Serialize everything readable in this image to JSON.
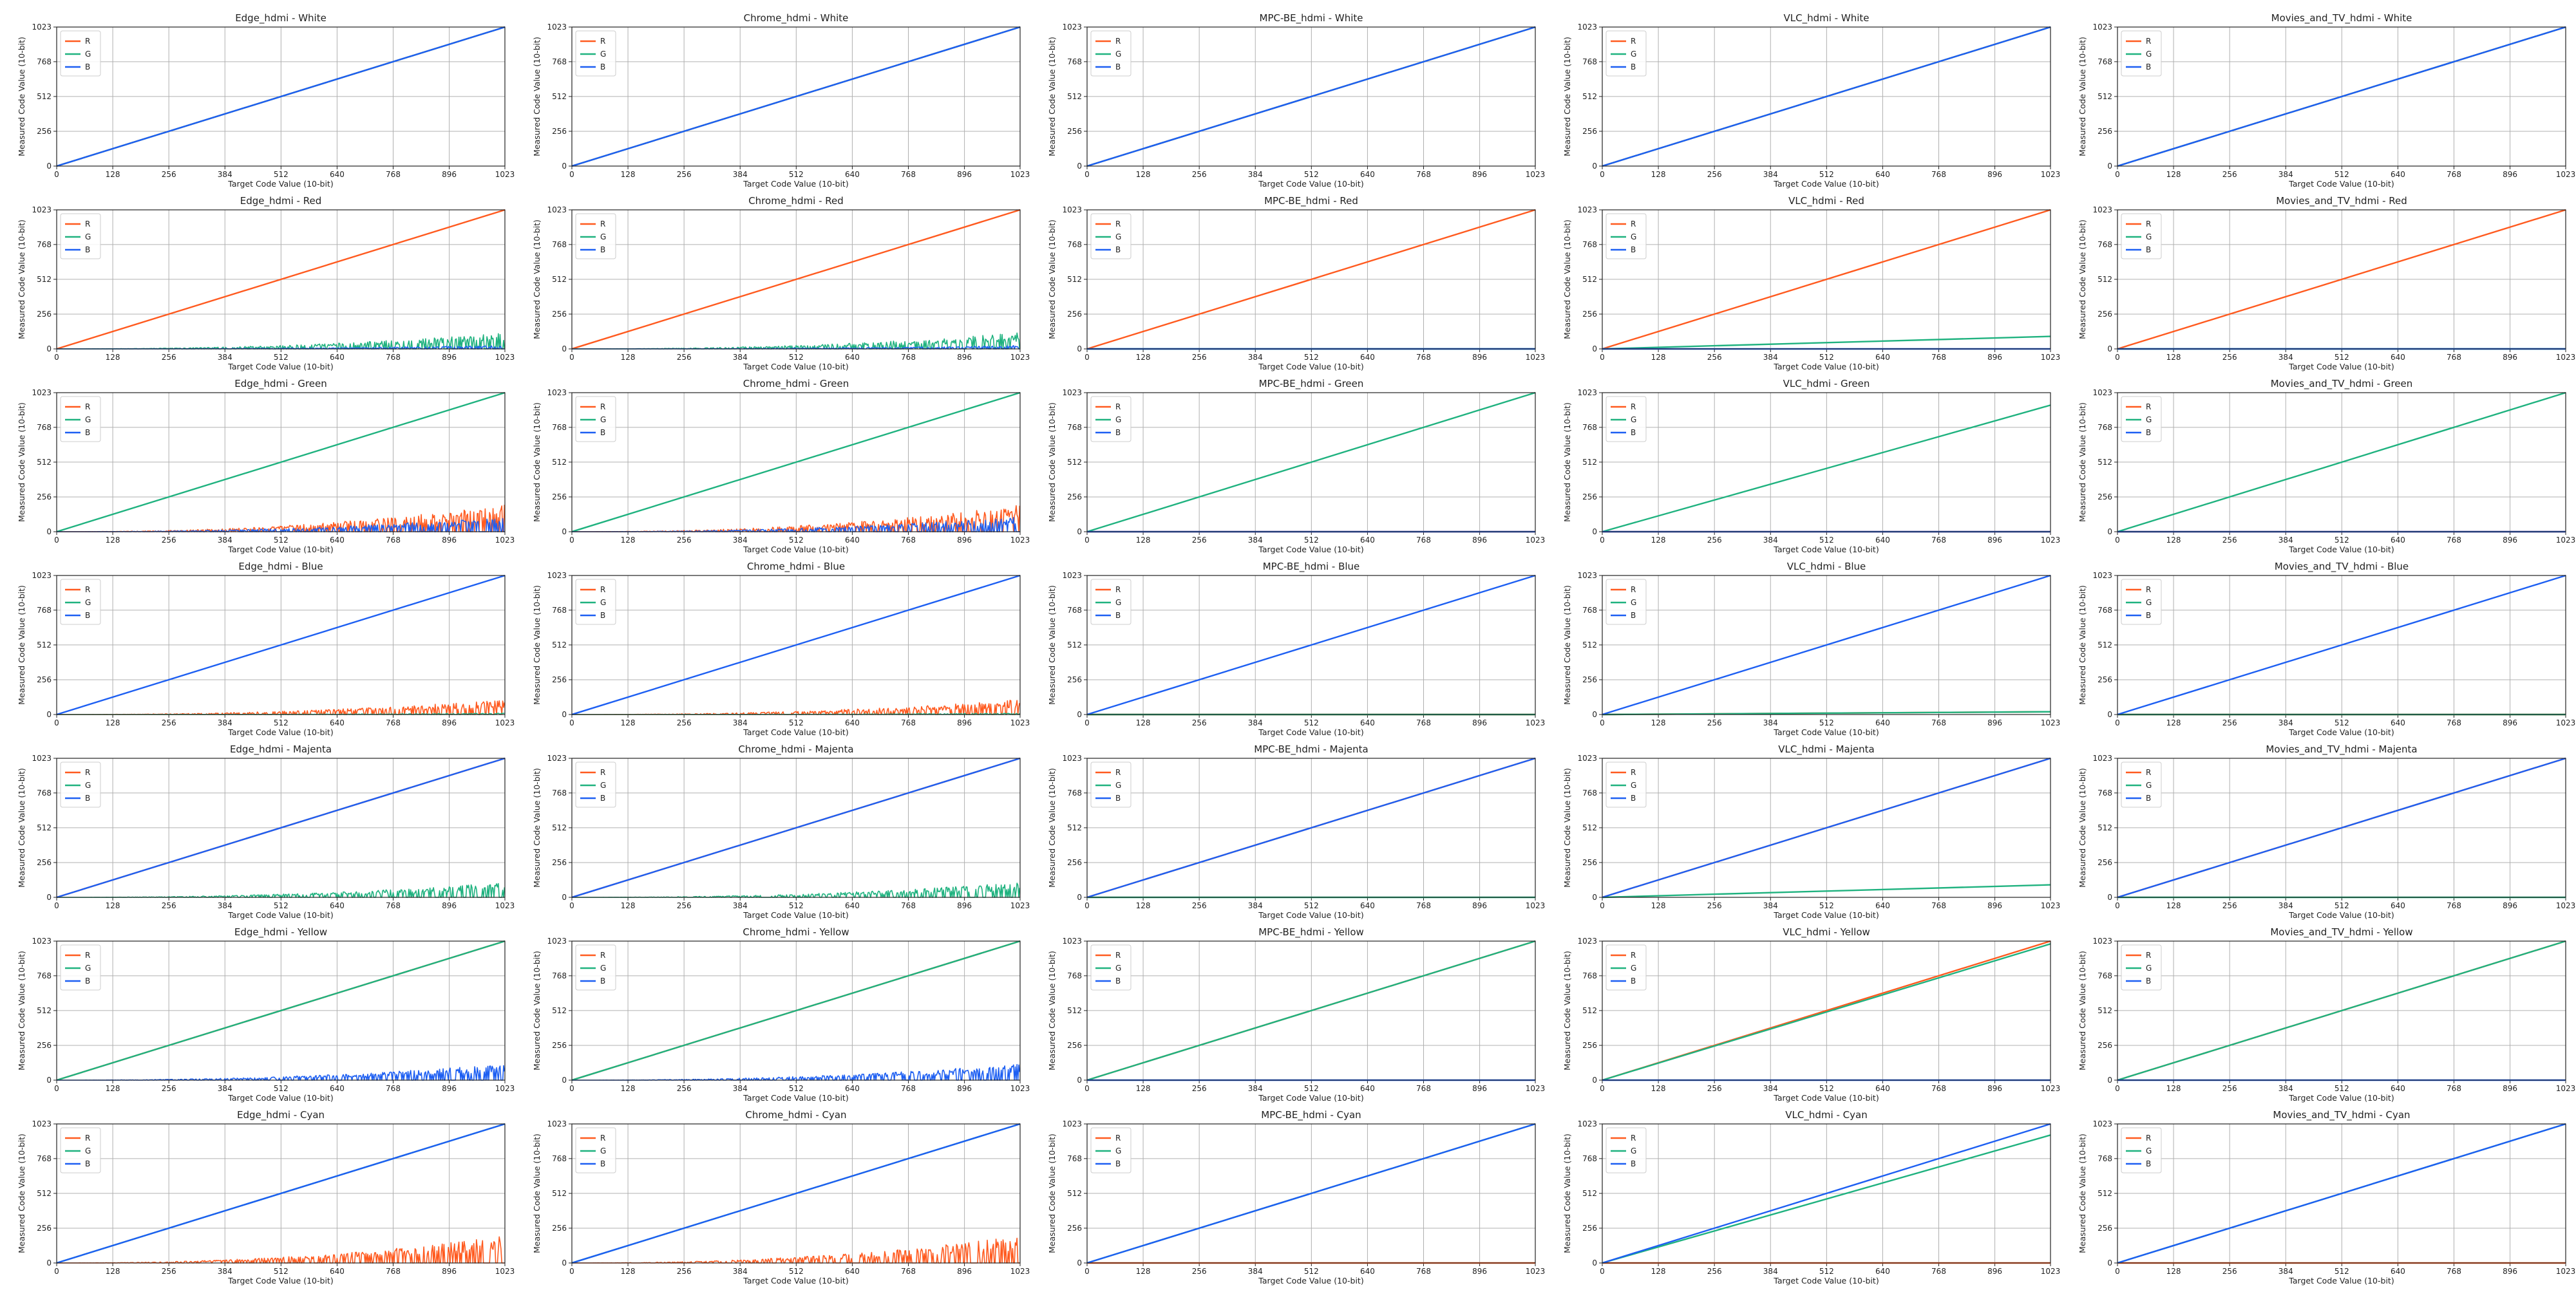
{
  "figure": {
    "rows": [
      "White",
      "Red",
      "Green",
      "Blue",
      "Magenta",
      "Yellow",
      "Cyan"
    ],
    "cols": [
      "Edge_hdmi",
      "Chrome_hdmi",
      "MPC-BE_hdmi",
      "VLC_hdmi",
      "Movies_and_TV_hdmi"
    ],
    "colors": {
      "R": "#ff5a1f",
      "G": "#1fb27f",
      "B": "#1d5ff2"
    }
  },
  "chart_data": {
    "type": "line",
    "layout": "7x5 grid of small multiples",
    "xlabel": "Target Code Value (10-bit)",
    "ylabel": "Measured Code Value (10-bit)",
    "xlim": [
      0,
      1023
    ],
    "ylim": [
      0,
      1023
    ],
    "xticks": [
      0,
      128,
      256,
      384,
      512,
      640,
      768,
      896,
      1023
    ],
    "yticks": [
      0,
      256,
      512,
      768,
      1023
    ],
    "grid": true,
    "legend": {
      "entries": [
        "R",
        "G",
        "B"
      ],
      "position": "upper-left"
    },
    "curve_model": "measured = slope * target (+ noise amplitude growing with target for noisy channels); values estimated from the plots",
    "subplots": [
      {
        "title": "Edge_hdmi - White",
        "series": [
          {
            "name": "R",
            "slope": 1.0,
            "noise": 0
          },
          {
            "name": "G",
            "slope": 1.0,
            "noise": 0
          },
          {
            "name": "B",
            "slope": 1.0,
            "noise": 0
          }
        ]
      },
      {
        "title": "Chrome_hdmi - White",
        "series": [
          {
            "name": "R",
            "slope": 1.0,
            "noise": 0
          },
          {
            "name": "G",
            "slope": 1.0,
            "noise": 0
          },
          {
            "name": "B",
            "slope": 1.0,
            "noise": 0
          }
        ]
      },
      {
        "title": "MPC-BE_hdmi - White",
        "series": [
          {
            "name": "R",
            "slope": 1.0,
            "noise": 0
          },
          {
            "name": "G",
            "slope": 1.0,
            "noise": 0
          },
          {
            "name": "B",
            "slope": 1.0,
            "noise": 0
          }
        ]
      },
      {
        "title": "VLC_hdmi - White",
        "series": [
          {
            "name": "R",
            "slope": 1.0,
            "noise": 0
          },
          {
            "name": "G",
            "slope": 1.0,
            "noise": 0
          },
          {
            "name": "B",
            "slope": 1.0,
            "noise": 0
          }
        ]
      },
      {
        "title": "Movies_and_TV_hdmi - White",
        "series": [
          {
            "name": "R",
            "slope": 1.0,
            "noise": 0
          },
          {
            "name": "G",
            "slope": 1.0,
            "noise": 0
          },
          {
            "name": "B",
            "slope": 1.0,
            "noise": 0
          }
        ]
      },
      {
        "title": "Edge_hdmi - Red",
        "series": [
          {
            "name": "R",
            "slope": 1.0,
            "noise": 0
          },
          {
            "name": "G",
            "slope": 0.0,
            "noise": 120
          },
          {
            "name": "B",
            "slope": 0.0,
            "noise": 25
          }
        ]
      },
      {
        "title": "Chrome_hdmi - Red",
        "series": [
          {
            "name": "R",
            "slope": 1.0,
            "noise": 0
          },
          {
            "name": "G",
            "slope": 0.0,
            "noise": 120
          },
          {
            "name": "B",
            "slope": 0.0,
            "noise": 25
          }
        ]
      },
      {
        "title": "MPC-BE_hdmi - Red",
        "series": [
          {
            "name": "R",
            "slope": 1.0,
            "noise": 0
          },
          {
            "name": "G",
            "slope": 0.0,
            "noise": 0
          },
          {
            "name": "B",
            "slope": 0.0,
            "noise": 0
          }
        ]
      },
      {
        "title": "VLC_hdmi - Red",
        "series": [
          {
            "name": "R",
            "slope": 1.0,
            "noise": 0
          },
          {
            "name": "G",
            "slope": 0.09,
            "noise": 0
          },
          {
            "name": "B",
            "slope": 0.0,
            "noise": 0
          }
        ]
      },
      {
        "title": "Movies_and_TV_hdmi - Red",
        "series": [
          {
            "name": "R",
            "slope": 1.0,
            "noise": 0
          },
          {
            "name": "G",
            "slope": 0.0,
            "noise": 0
          },
          {
            "name": "B",
            "slope": 0.0,
            "noise": 0
          }
        ]
      },
      {
        "title": "Edge_hdmi - Green",
        "series": [
          {
            "name": "R",
            "slope": 0.0,
            "noise": 200
          },
          {
            "name": "G",
            "slope": 1.0,
            "noise": 0
          },
          {
            "name": "B",
            "slope": 0.0,
            "noise": 110
          }
        ]
      },
      {
        "title": "Chrome_hdmi - Green",
        "series": [
          {
            "name": "R",
            "slope": 0.0,
            "noise": 200
          },
          {
            "name": "G",
            "slope": 1.0,
            "noise": 0
          },
          {
            "name": "B",
            "slope": 0.0,
            "noise": 110
          }
        ]
      },
      {
        "title": "MPC-BE_hdmi - Green",
        "series": [
          {
            "name": "R",
            "slope": 0.0,
            "noise": 0
          },
          {
            "name": "G",
            "slope": 1.0,
            "noise": 0
          },
          {
            "name": "B",
            "slope": 0.0,
            "noise": 0
          }
        ]
      },
      {
        "title": "VLC_hdmi - Green",
        "series": [
          {
            "name": "R",
            "slope": 0.0,
            "noise": 0
          },
          {
            "name": "G",
            "slope": 0.91,
            "noise": 0
          },
          {
            "name": "B",
            "slope": 0.0,
            "noise": 0
          }
        ]
      },
      {
        "title": "Movies_and_TV_hdmi - Green",
        "series": [
          {
            "name": "R",
            "slope": 0.0,
            "noise": 0
          },
          {
            "name": "G",
            "slope": 1.0,
            "noise": 0
          },
          {
            "name": "B",
            "slope": 0.0,
            "noise": 0
          }
        ]
      },
      {
        "title": "Edge_hdmi - Blue",
        "series": [
          {
            "name": "R",
            "slope": 0.0,
            "noise": 110
          },
          {
            "name": "G",
            "slope": 0.0,
            "noise": 10
          },
          {
            "name": "B",
            "slope": 1.0,
            "noise": 0
          }
        ]
      },
      {
        "title": "Chrome_hdmi - Blue",
        "series": [
          {
            "name": "R",
            "slope": 0.0,
            "noise": 110
          },
          {
            "name": "G",
            "slope": 0.0,
            "noise": 10
          },
          {
            "name": "B",
            "slope": 1.0,
            "noise": 0
          }
        ]
      },
      {
        "title": "MPC-BE_hdmi - Blue",
        "series": [
          {
            "name": "R",
            "slope": 0.0,
            "noise": 0
          },
          {
            "name": "G",
            "slope": 0.0,
            "noise": 0
          },
          {
            "name": "B",
            "slope": 1.0,
            "noise": 0
          }
        ]
      },
      {
        "title": "VLC_hdmi - Blue",
        "series": [
          {
            "name": "R",
            "slope": 0.02,
            "noise": 0
          },
          {
            "name": "G",
            "slope": 0.02,
            "noise": 0
          },
          {
            "name": "B",
            "slope": 1.0,
            "noise": 0
          }
        ]
      },
      {
        "title": "Movies_and_TV_hdmi - Blue",
        "series": [
          {
            "name": "R",
            "slope": 0.0,
            "noise": 0
          },
          {
            "name": "G",
            "slope": 0.0,
            "noise": 0
          },
          {
            "name": "B",
            "slope": 1.0,
            "noise": 0
          }
        ]
      },
      {
        "title": "Edge_hdmi - Majenta",
        "series": [
          {
            "name": "R",
            "slope": 1.0,
            "noise": 0
          },
          {
            "name": "G",
            "slope": 0.0,
            "noise": 110
          },
          {
            "name": "B",
            "slope": 1.0,
            "noise": 0
          }
        ]
      },
      {
        "title": "Chrome_hdmi - Majenta",
        "series": [
          {
            "name": "R",
            "slope": 1.0,
            "noise": 0
          },
          {
            "name": "G",
            "slope": 0.0,
            "noise": 110
          },
          {
            "name": "B",
            "slope": 1.0,
            "noise": 0
          }
        ]
      },
      {
        "title": "MPC-BE_hdmi - Majenta",
        "series": [
          {
            "name": "R",
            "slope": 1.0,
            "noise": 0
          },
          {
            "name": "G",
            "slope": 0.0,
            "noise": 0
          },
          {
            "name": "B",
            "slope": 1.0,
            "noise": 0
          }
        ]
      },
      {
        "title": "VLC_hdmi - Majenta",
        "series": [
          {
            "name": "R",
            "slope": 1.0,
            "noise": 0
          },
          {
            "name": "G",
            "slope": 0.09,
            "noise": 0
          },
          {
            "name": "B",
            "slope": 1.0,
            "noise": 0
          }
        ]
      },
      {
        "title": "Movies_and_TV_hdmi - Majenta",
        "series": [
          {
            "name": "R",
            "slope": 1.0,
            "noise": 0
          },
          {
            "name": "G",
            "slope": 0.0,
            "noise": 0
          },
          {
            "name": "B",
            "slope": 1.0,
            "noise": 0
          }
        ]
      },
      {
        "title": "Edge_hdmi - Yellow",
        "series": [
          {
            "name": "R",
            "slope": 1.0,
            "noise": 0
          },
          {
            "name": "G",
            "slope": 1.0,
            "noise": 0
          },
          {
            "name": "B",
            "slope": 0.0,
            "noise": 120
          }
        ]
      },
      {
        "title": "Chrome_hdmi - Yellow",
        "series": [
          {
            "name": "R",
            "slope": 1.0,
            "noise": 0
          },
          {
            "name": "G",
            "slope": 1.0,
            "noise": 0
          },
          {
            "name": "B",
            "slope": 0.0,
            "noise": 120
          }
        ]
      },
      {
        "title": "MPC-BE_hdmi - Yellow",
        "series": [
          {
            "name": "R",
            "slope": 1.0,
            "noise": 0
          },
          {
            "name": "G",
            "slope": 1.0,
            "noise": 0
          },
          {
            "name": "B",
            "slope": 0.0,
            "noise": 0
          }
        ]
      },
      {
        "title": "VLC_hdmi - Yellow",
        "series": [
          {
            "name": "R",
            "slope": 1.0,
            "noise": 0
          },
          {
            "name": "G",
            "slope": 0.98,
            "noise": 0
          },
          {
            "name": "B",
            "slope": 0.0,
            "noise": 0
          }
        ]
      },
      {
        "title": "Movies_and_TV_hdmi - Yellow",
        "series": [
          {
            "name": "R",
            "slope": 1.0,
            "noise": 0
          },
          {
            "name": "G",
            "slope": 1.0,
            "noise": 0
          },
          {
            "name": "B",
            "slope": 0.0,
            "noise": 0
          }
        ]
      },
      {
        "title": "Edge_hdmi - Cyan",
        "series": [
          {
            "name": "R",
            "slope": 0.0,
            "noise": 200
          },
          {
            "name": "G",
            "slope": 1.0,
            "noise": 0
          },
          {
            "name": "B",
            "slope": 1.0,
            "noise": 0
          }
        ]
      },
      {
        "title": "Chrome_hdmi - Cyan",
        "series": [
          {
            "name": "R",
            "slope": 0.0,
            "noise": 200
          },
          {
            "name": "G",
            "slope": 1.0,
            "noise": 0
          },
          {
            "name": "B",
            "slope": 1.0,
            "noise": 0
          }
        ]
      },
      {
        "title": "MPC-BE_hdmi - Cyan",
        "series": [
          {
            "name": "R",
            "slope": 0.0,
            "noise": 0
          },
          {
            "name": "G",
            "slope": 1.0,
            "noise": 0
          },
          {
            "name": "B",
            "slope": 1.0,
            "noise": 0
          }
        ]
      },
      {
        "title": "VLC_hdmi - Cyan",
        "series": [
          {
            "name": "R",
            "slope": 0.0,
            "noise": 0
          },
          {
            "name": "G",
            "slope": 0.92,
            "noise": 0
          },
          {
            "name": "B",
            "slope": 1.0,
            "noise": 0
          }
        ]
      },
      {
        "title": "Movies_and_TV_hdmi - Cyan",
        "series": [
          {
            "name": "R",
            "slope": 0.0,
            "noise": 0
          },
          {
            "name": "G",
            "slope": 1.0,
            "noise": 0
          },
          {
            "name": "B",
            "slope": 1.0,
            "noise": 0
          }
        ]
      }
    ]
  }
}
